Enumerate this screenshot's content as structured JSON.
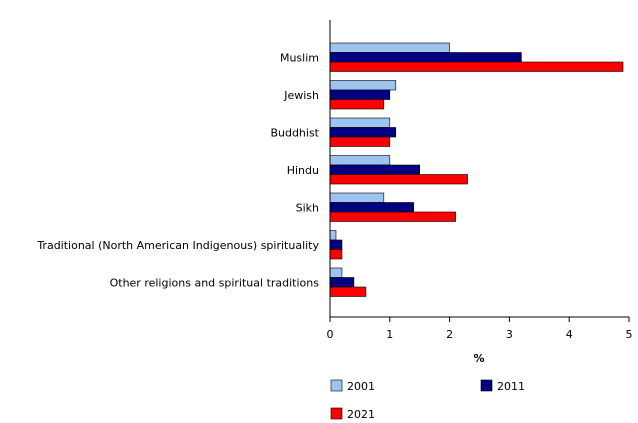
{
  "chart_data": {
    "type": "bar",
    "orientation": "horizontal",
    "title": "",
    "xlabel": "%",
    "ylabel": "",
    "xlim": [
      0,
      5
    ],
    "x_ticks": [
      "0",
      "1",
      "2",
      "3",
      "4",
      "5"
    ],
    "grid": false,
    "legend_position": "bottom",
    "categories": [
      "Muslim",
      "Jewish",
      "Buddhist",
      "Hindu",
      "Sikh",
      "Traditional (North American Indigenous) spirituality",
      "Other religions and spiritual traditions"
    ],
    "series": [
      {
        "name": "2001",
        "color": "#9dc3f0",
        "values": [
          2.0,
          1.1,
          1.0,
          1.0,
          0.9,
          0.1,
          0.2
        ]
      },
      {
        "name": "2011",
        "color": "#000080",
        "values": [
          3.2,
          1.0,
          1.1,
          1.5,
          1.4,
          0.2,
          0.4
        ]
      },
      {
        "name": "2021",
        "color": "#ff0000",
        "values": [
          4.9,
          0.9,
          1.0,
          2.3,
          2.1,
          0.2,
          0.6
        ]
      }
    ]
  }
}
